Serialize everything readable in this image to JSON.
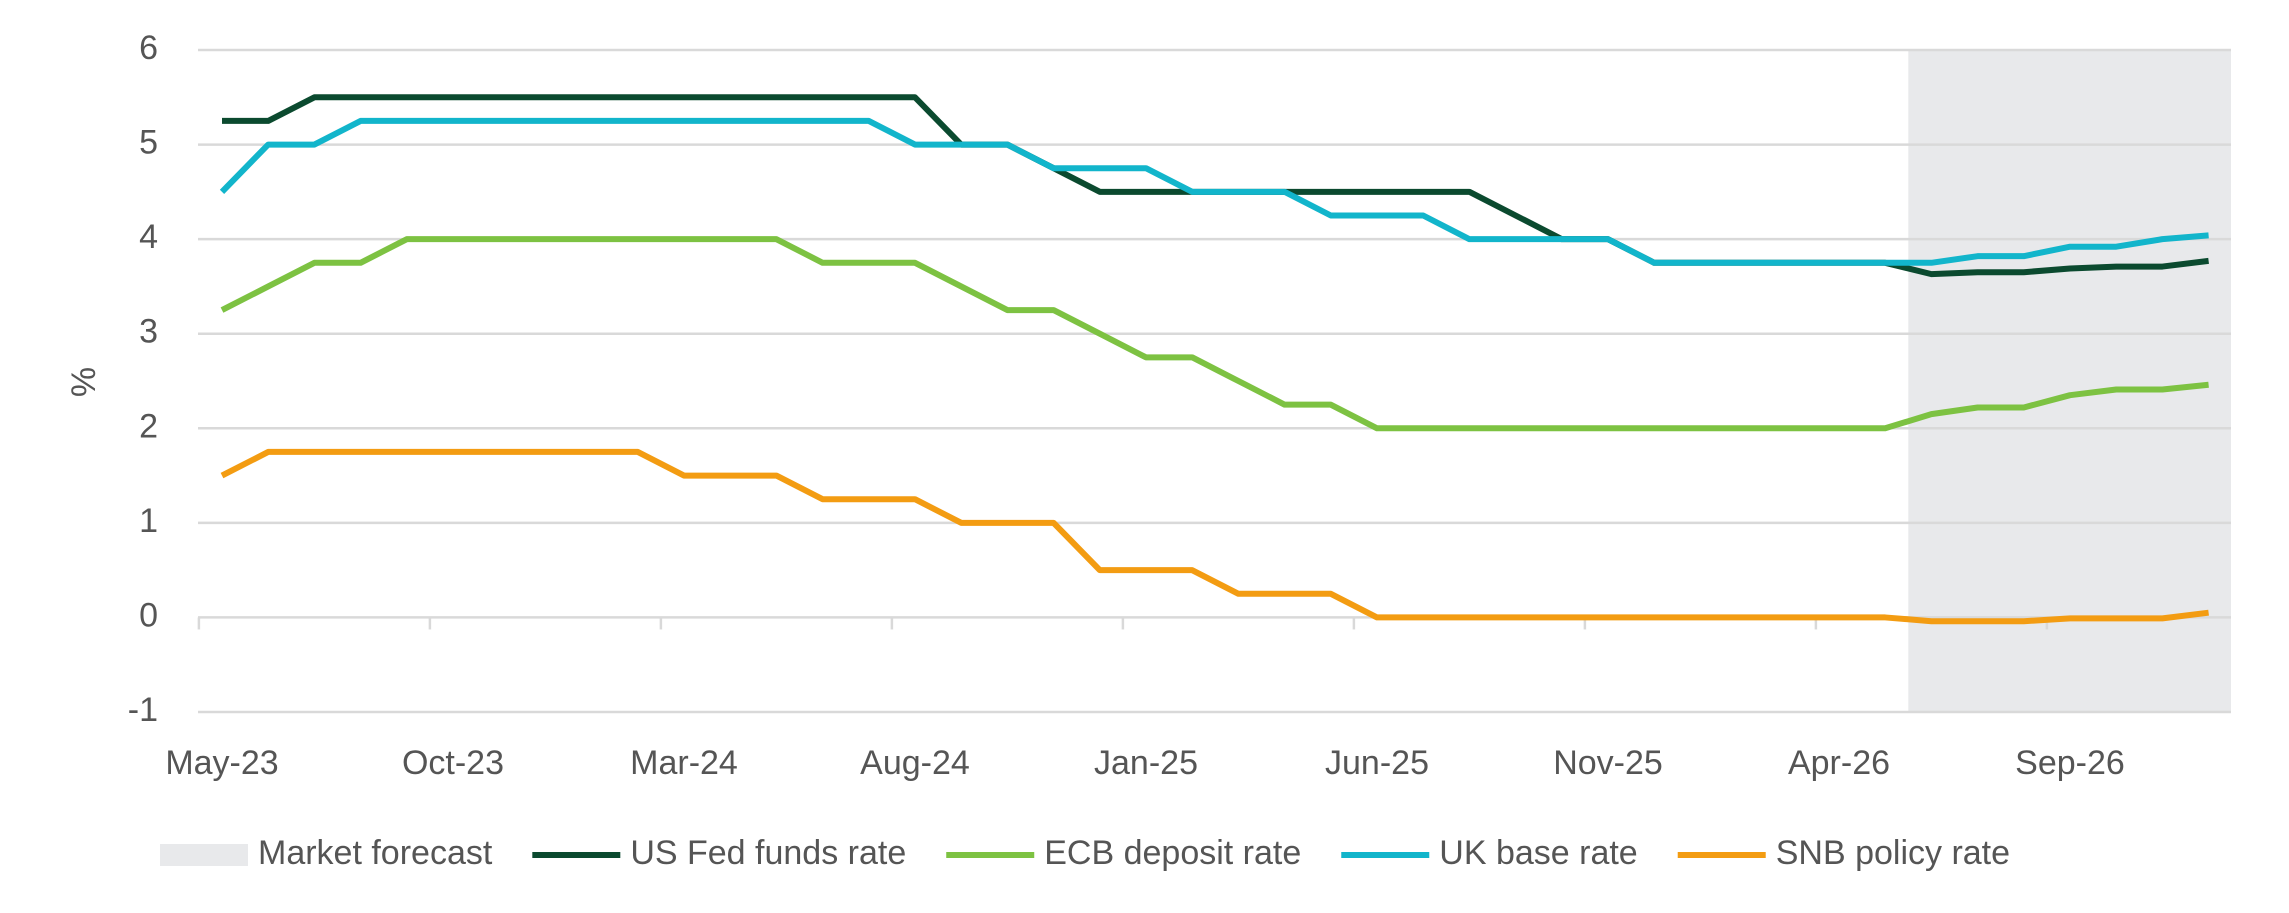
{
  "chart_data": {
    "type": "line",
    "y_label": "%",
    "categories": [
      "May-23",
      null,
      null,
      null,
      null,
      "Oct-23",
      null,
      null,
      null,
      null,
      "Mar-24",
      null,
      null,
      null,
      null,
      "Aug-24",
      null,
      null,
      null,
      null,
      "Jan-25",
      null,
      null,
      null,
      null,
      "Jun-25",
      null,
      null,
      null,
      null,
      "Nov-25",
      null,
      null,
      null,
      null,
      "Apr-26",
      null,
      null,
      null,
      null,
      "Sep-26",
      null,
      null,
      null
    ],
    "ylim": [
      -1,
      6
    ],
    "yticks": [
      -1,
      0,
      1,
      2,
      3,
      4,
      5,
      6
    ],
    "grid": true,
    "forecast": {
      "name": "Market forecast",
      "color": "#e8e9eb",
      "from": 36.5
    },
    "series": [
      {
        "name": "US Fed funds rate",
        "color": "#0b4a2f",
        "values": [
          5.25,
          5.25,
          5.5,
          5.5,
          5.5,
          5.5,
          5.5,
          5.5,
          5.5,
          5.5,
          5.5,
          5.5,
          5.5,
          5.5,
          5.5,
          5.5,
          5.0,
          5.0,
          4.75,
          4.5,
          4.5,
          4.5,
          4.5,
          4.5,
          4.5,
          4.5,
          4.5,
          4.5,
          4.25,
          4.0,
          4.0,
          3.75,
          3.75,
          3.75,
          3.75,
          3.75,
          3.75,
          3.63,
          3.65,
          3.65,
          3.69,
          3.71,
          3.71,
          3.77
        ]
      },
      {
        "name": "ECB deposit rate",
        "color": "#7dc242",
        "values": [
          3.25,
          3.5,
          3.75,
          3.75,
          4.0,
          4.0,
          4.0,
          4.0,
          4.0,
          4.0,
          4.0,
          4.0,
          4.0,
          3.75,
          3.75,
          3.75,
          3.5,
          3.25,
          3.25,
          3.0,
          2.75,
          2.75,
          2.5,
          2.25,
          2.25,
          2.0,
          2.0,
          2.0,
          2.0,
          2.0,
          2.0,
          2.0,
          2.0,
          2.0,
          2.0,
          2.0,
          2.0,
          2.15,
          2.22,
          2.22,
          2.35,
          2.41,
          2.41,
          2.46
        ]
      },
      {
        "name": "UK base rate",
        "color": "#12b5cb",
        "values": [
          4.5,
          5.0,
          5.0,
          5.25,
          5.25,
          5.25,
          5.25,
          5.25,
          5.25,
          5.25,
          5.25,
          5.25,
          5.25,
          5.25,
          5.25,
          5.0,
          5.0,
          5.0,
          4.75,
          4.75,
          4.75,
          4.5,
          4.5,
          4.5,
          4.25,
          4.25,
          4.25,
          4.0,
          4.0,
          4.0,
          4.0,
          3.75,
          3.75,
          3.75,
          3.75,
          3.75,
          3.75,
          3.75,
          3.82,
          3.82,
          3.92,
          3.92,
          4.0,
          4.04
        ]
      },
      {
        "name": "SNB policy rate",
        "color": "#f39c12",
        "values": [
          1.5,
          1.75,
          1.75,
          1.75,
          1.75,
          1.75,
          1.75,
          1.75,
          1.75,
          1.75,
          1.5,
          1.5,
          1.5,
          1.25,
          1.25,
          1.25,
          1.0,
          1.0,
          1.0,
          0.5,
          0.5,
          0.5,
          0.25,
          0.25,
          0.25,
          0,
          0,
          0,
          0,
          0,
          0,
          0,
          0,
          0,
          0,
          0,
          0,
          -0.04,
          -0.04,
          -0.04,
          -0.01,
          -0.01,
          -0.01,
          0.05
        ]
      }
    ]
  }
}
